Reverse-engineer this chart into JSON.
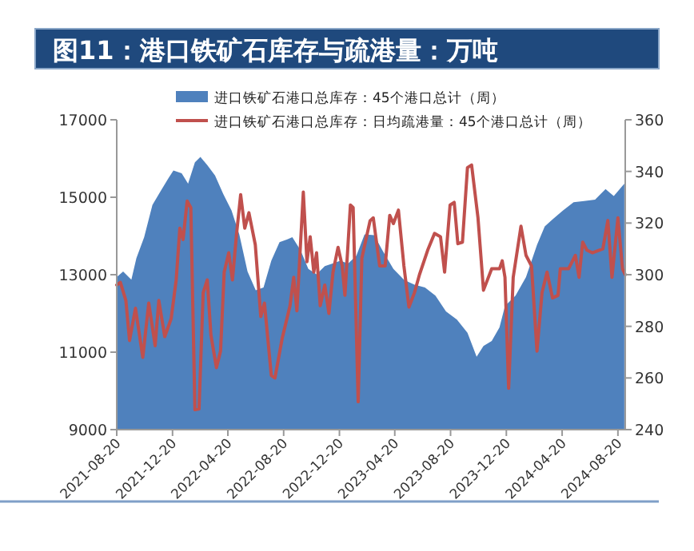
{
  "chart_data": {
    "type": "area",
    "title": "图11：港口铁矿石库存与疏港量：万吨",
    "legend": "top",
    "grid": false,
    "marker": "none",
    "line_style": "solid",
    "xlim": [
      "2021-08-20",
      "2024-09-05"
    ],
    "xticks": [
      "2021-08-20",
      "2021-12-20",
      "2022-04-20",
      "2022-08-20",
      "2022-12-20",
      "2023-04-20",
      "2023-08-20",
      "2023-12-20",
      "2024-04-20",
      "2024-08-20"
    ],
    "ylim": [
      9000,
      17000
    ],
    "yticks": [
      9000,
      11000,
      13000,
      15000,
      17000
    ],
    "y2lim": [
      240,
      360
    ],
    "y2ticks": [
      240,
      260,
      280,
      300,
      320,
      340,
      360
    ],
    "series": [
      {
        "name": "进口铁矿石港口总库存：45个港口总计（周）",
        "color": "#4f81bd",
        "x": [
          "2021-08-20",
          "2021-09-03",
          "2021-09-21",
          "2021-10-02",
          "2021-10-19",
          "2021-11-06",
          "2021-11-23",
          "2021-12-11",
          "2021-12-22",
          "2022-01-09",
          "2022-01-23",
          "2022-02-07",
          "2022-02-19",
          "2022-03-06",
          "2022-03-23",
          "2022-04-10",
          "2022-04-28",
          "2022-05-15",
          "2022-06-02",
          "2022-06-20",
          "2022-07-07",
          "2022-07-24",
          "2022-08-11",
          "2022-08-28",
          "2022-09-08",
          "2022-09-26",
          "2022-10-13",
          "2022-10-31",
          "2022-11-18",
          "2022-12-05",
          "2022-12-22",
          "2023-01-08",
          "2023-01-26",
          "2023-02-13",
          "2023-03-06",
          "2023-03-24",
          "2023-04-17",
          "2023-05-10",
          "2023-06-02",
          "2023-06-25",
          "2023-07-18",
          "2023-08-10",
          "2023-09-03",
          "2023-09-26",
          "2023-10-16",
          "2023-10-31",
          "2023-11-18",
          "2023-12-05",
          "2023-12-17",
          "2024-01-09",
          "2024-02-01",
          "2024-02-25",
          "2024-03-13",
          "2024-03-30",
          "2024-04-22",
          "2024-05-15",
          "2024-06-07",
          "2024-07-01",
          "2024-07-24",
          "2024-08-11",
          "2024-09-03"
        ],
        "values": [
          12940,
          13080,
          12870,
          13430,
          13970,
          14800,
          15140,
          15490,
          15690,
          15620,
          15350,
          15900,
          16040,
          15830,
          15560,
          15080,
          14660,
          14040,
          13080,
          12600,
          12670,
          13360,
          13840,
          13910,
          13970,
          13630,
          13150,
          13010,
          13220,
          13290,
          13360,
          13290,
          13490,
          14040,
          14020,
          13630,
          13150,
          12870,
          12740,
          12670,
          12460,
          12050,
          11840,
          11500,
          10880,
          11160,
          11290,
          11640,
          12190,
          12460,
          12940,
          13770,
          14250,
          14430,
          14660,
          14870,
          14900,
          14940,
          15210,
          15030,
          15350
        ]
      },
      {
        "type": "line",
        "axis": "y2",
        "name": "进口铁矿石港口总库存：日均疏港量：45个港口总计（周）",
        "color": "#c0504d",
        "x": [
          "2021-08-20",
          "2021-08-28",
          "2021-09-09",
          "2021-09-17",
          "2021-09-30",
          "2021-10-16",
          "2021-10-29",
          "2021-11-12",
          "2021-11-20",
          "2021-12-03",
          "2021-12-17",
          "2021-12-28",
          "2022-01-05",
          "2022-01-12",
          "2022-01-21",
          "2022-01-29",
          "2022-02-07",
          "2022-02-16",
          "2022-02-25",
          "2022-03-06",
          "2022-03-14",
          "2022-03-26",
          "2022-04-04",
          "2022-04-12",
          "2022-04-22",
          "2022-04-30",
          "2022-05-09",
          "2022-05-18",
          "2022-05-27",
          "2022-06-05",
          "2022-06-19",
          "2022-07-01",
          "2022-07-09",
          "2022-07-24",
          "2022-08-01",
          "2022-08-17",
          "2022-09-03",
          "2022-09-11",
          "2022-09-18",
          "2022-10-02",
          "2022-10-10",
          "2022-10-17",
          "2022-10-25",
          "2022-10-31",
          "2022-11-08",
          "2022-11-18",
          "2022-11-27",
          "2022-12-06",
          "2022-12-17",
          "2022-12-26",
          "2023-01-01",
          "2023-01-13",
          "2023-01-19",
          "2023-01-30",
          "2023-02-07",
          "2023-02-25",
          "2023-03-04",
          "2023-03-18",
          "2023-03-30",
          "2023-04-09",
          "2023-04-17",
          "2023-04-28",
          "2023-05-10",
          "2023-05-21",
          "2023-06-02",
          "2023-06-13",
          "2023-07-01",
          "2023-07-16",
          "2023-07-29",
          "2023-08-07",
          "2023-08-19",
          "2023-08-28",
          "2023-09-05",
          "2023-09-15",
          "2023-09-26",
          "2023-10-05",
          "2023-10-19",
          "2023-10-31",
          "2023-11-18",
          "2023-12-05",
          "2023-12-11",
          "2023-12-17",
          "2023-12-25",
          "2024-01-04",
          "2024-01-21",
          "2024-02-01",
          "2024-02-13",
          "2024-02-25",
          "2024-03-07",
          "2024-03-18",
          "2024-03-30",
          "2024-04-11",
          "2024-04-16",
          "2024-05-04",
          "2024-05-19",
          "2024-05-27",
          "2024-06-04",
          "2024-06-13",
          "2024-06-25",
          "2024-07-18",
          "2024-07-29",
          "2024-08-07",
          "2024-08-20",
          "2024-08-30",
          "2024-09-05"
        ],
        "values": [
          296,
          297,
          290,
          274.5,
          287,
          268,
          289,
          272.5,
          290,
          276,
          283,
          298,
          318,
          313.6,
          328.5,
          326,
          247.7,
          248,
          293,
          298,
          276.6,
          264,
          270.4,
          301,
          308.5,
          298,
          315.7,
          331,
          318,
          324,
          311.6,
          283.8,
          289,
          261,
          260,
          275.5,
          288,
          299,
          286,
          332,
          305,
          314.7,
          301,
          308.5,
          288,
          296,
          285,
          301,
          310.6,
          303.4,
          292,
          327,
          326,
          250.8,
          306.4,
          320.9,
          322,
          303.4,
          303.4,
          323,
          319.8,
          325,
          303.4,
          287.5,
          293,
          300,
          309.5,
          316,
          314.7,
          301,
          327,
          328,
          312,
          312.6,
          341.5,
          342.5,
          322,
          294,
          302.3,
          302.3,
          305.4,
          299,
          256,
          299,
          318.8,
          307.5,
          303.4,
          270.4,
          293,
          301,
          291,
          292,
          302.3,
          302.3,
          307.5,
          299,
          312.6,
          309.5,
          308.5,
          310,
          321,
          299,
          322,
          302.3,
          300
        ]
      }
    ]
  }
}
